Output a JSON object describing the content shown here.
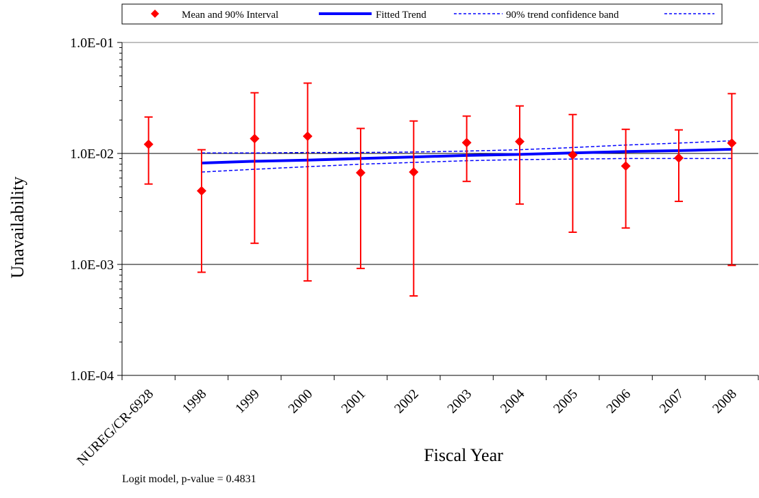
{
  "chart_data": {
    "type": "scatter",
    "title": "",
    "xlabel": "Fiscal Year",
    "ylabel": "Unavailability",
    "y_scale": "log",
    "ylim": [
      0.0001,
      0.1
    ],
    "y_tick_labels": [
      "1.0E-04",
      "1.0E-03",
      "1.0E-02",
      "1.0E-01"
    ],
    "y_tick_values": [
      0.0001,
      0.001,
      0.01,
      0.1
    ],
    "categories": [
      "NUREG/CR-6928",
      "1998",
      "1999",
      "2000",
      "2001",
      "2002",
      "2003",
      "2004",
      "2005",
      "2006",
      "2007",
      "2008"
    ],
    "grid": "horizontal major lines at 1.0E-03, 1.0E-02, 1.0E-01",
    "legend_position": "top",
    "legend": [
      {
        "label": "Mean and 90% Interval",
        "marker": "diamond",
        "color": "#ff0000"
      },
      {
        "label": "Fitted Trend",
        "line": "solid",
        "color": "#0000ff"
      },
      {
        "label": "90% trend confidence band",
        "line": "dashed",
        "color": "#0000ff"
      }
    ],
    "series": [
      {
        "name": "Mean and 90% Interval",
        "color": "#ff0000",
        "mean": [
          0.0121,
          0.0046,
          0.0136,
          0.0143,
          0.0067,
          0.0068,
          0.0125,
          0.0128,
          0.0097,
          0.0077,
          0.0091,
          0.0124
        ],
        "upper": [
          0.0213,
          0.0108,
          0.0352,
          0.043,
          0.0168,
          0.0196,
          0.0217,
          0.0268,
          0.0224,
          0.0165,
          0.0163,
          0.0346
        ],
        "lower": [
          0.0053,
          0.00085,
          0.00155,
          0.00071,
          0.00092,
          0.00052,
          0.0056,
          0.0035,
          0.00195,
          0.00213,
          0.0037,
          0.00098
        ]
      },
      {
        "name": "Fitted Trend",
        "color": "#0000ff",
        "x": [
          "1998",
          "1999",
          "2000",
          "2001",
          "2002",
          "2003",
          "2004",
          "2005",
          "2006",
          "2007",
          "2008"
        ],
        "values": [
          0.0082,
          0.0085,
          0.0087,
          0.009,
          0.0093,
          0.0096,
          0.0098,
          0.0101,
          0.0104,
          0.0106,
          0.0109
        ]
      },
      {
        "name": "90% trend confidence band",
        "color": "#0000ff",
        "x": [
          "1998",
          "1999",
          "2000",
          "2001",
          "2002",
          "2003",
          "2004",
          "2005",
          "2006",
          "2007",
          "2008"
        ],
        "upper": [
          0.0101,
          0.0101,
          0.0102,
          0.0102,
          0.0103,
          0.0105,
          0.0108,
          0.0113,
          0.0119,
          0.0124,
          0.013
        ],
        "lower": [
          0.0068,
          0.0072,
          0.0076,
          0.008,
          0.0083,
          0.0086,
          0.0088,
          0.0089,
          0.009,
          0.009,
          0.009
        ]
      }
    ],
    "annotation": "Logit model, p-value = 0.4831"
  }
}
